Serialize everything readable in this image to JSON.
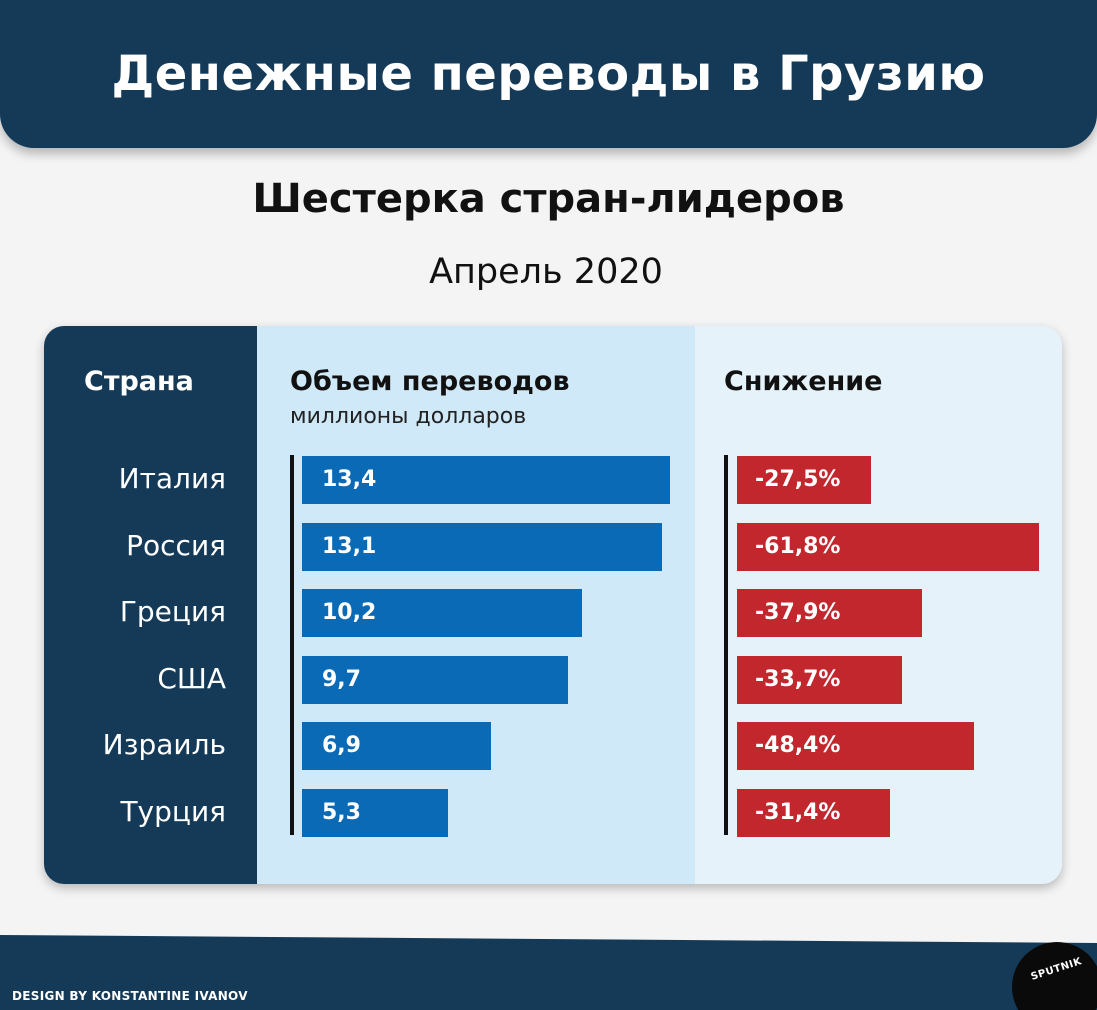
{
  "header": {
    "title": "Денежные переводы в Грузию"
  },
  "subtitle": "Шестерка стран-лидеров",
  "date": "Апрель 2020",
  "table": {
    "col_country": "Страна",
    "col_volume": "Объем переводов",
    "col_volume_unit": "миллионы долларов",
    "col_drop": "Снижение"
  },
  "chart_data": {
    "type": "bar",
    "categories": [
      "Италия",
      "Россия",
      "Греция",
      "США",
      "Израиль",
      "Турция"
    ],
    "series": [
      {
        "name": "Объем переводов",
        "values": [
          13.4,
          13.1,
          10.2,
          9.7,
          6.9,
          5.3
        ],
        "labels": [
          "13,4",
          "13,1",
          "10,2",
          "9,7",
          "6,9",
          "5,3"
        ],
        "color": "#0b6ab6"
      },
      {
        "name": "Снижение",
        "values": [
          -27.5,
          -61.8,
          -37.9,
          -33.7,
          -48.4,
          -31.4
        ],
        "labels": [
          "-27,5%",
          "-61,8%",
          "-37,9%",
          "-33,7%",
          "-48,4%",
          "-31,4%"
        ],
        "color": "#c1272d"
      }
    ]
  },
  "footer": {
    "credit": "DESIGN BY KONSTANTINE IVANOV",
    "logo": "SPUTNIK"
  }
}
